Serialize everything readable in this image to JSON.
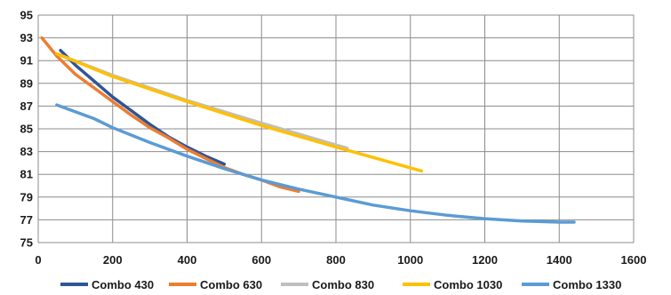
{
  "chart_data": {
    "type": "line",
    "title": "",
    "xlabel": "",
    "ylabel": "",
    "xlim": [
      0,
      1600
    ],
    "ylim": [
      75,
      95
    ],
    "x_ticks": [
      0,
      200,
      400,
      600,
      800,
      1000,
      1200,
      1400,
      1600
    ],
    "y_ticks": [
      75,
      77,
      79,
      81,
      83,
      85,
      87,
      89,
      91,
      93,
      95
    ],
    "grid": true,
    "legend_position": "bottom",
    "series": [
      {
        "name": "Combo 430",
        "color": "#2E5597",
        "points": [
          [
            60,
            91.9
          ],
          [
            100,
            90.6
          ],
          [
            150,
            89.2
          ],
          [
            200,
            87.8
          ],
          [
            250,
            86.6
          ],
          [
            300,
            85.4
          ],
          [
            350,
            84.3
          ],
          [
            400,
            83.4
          ],
          [
            450,
            82.6
          ],
          [
            500,
            81.9
          ]
        ]
      },
      {
        "name": "Combo 630",
        "color": "#ED7D31",
        "points": [
          [
            10,
            93.0
          ],
          [
            50,
            91.4
          ],
          [
            100,
            89.8
          ],
          [
            150,
            88.6
          ],
          [
            200,
            87.4
          ],
          [
            250,
            86.2
          ],
          [
            300,
            85.1
          ],
          [
            350,
            84.2
          ],
          [
            400,
            83.2
          ],
          [
            450,
            82.4
          ],
          [
            500,
            81.6
          ],
          [
            550,
            81.0
          ],
          [
            600,
            80.5
          ],
          [
            650,
            79.9
          ],
          [
            700,
            79.5
          ]
        ]
      },
      {
        "name": "Combo 830",
        "color": "#BFBFBF",
        "points": [
          [
            50,
            91.6
          ],
          [
            200,
            89.7
          ],
          [
            400,
            87.5
          ],
          [
            600,
            85.5
          ],
          [
            830,
            83.3
          ]
        ]
      },
      {
        "name": "Combo 1030",
        "color": "#FFC000",
        "points": [
          [
            50,
            91.6
          ],
          [
            200,
            89.6
          ],
          [
            400,
            87.4
          ],
          [
            600,
            85.3
          ],
          [
            800,
            83.4
          ],
          [
            1030,
            81.3
          ]
        ]
      },
      {
        "name": "Combo 1330",
        "color": "#5B9BD5",
        "points": [
          [
            50,
            87.1
          ],
          [
            150,
            85.9
          ],
          [
            200,
            85.1
          ],
          [
            300,
            83.8
          ],
          [
            400,
            82.6
          ],
          [
            500,
            81.5
          ],
          [
            600,
            80.5
          ],
          [
            700,
            79.7
          ],
          [
            800,
            79.0
          ],
          [
            900,
            78.3
          ],
          [
            1000,
            77.8
          ],
          [
            1100,
            77.4
          ],
          [
            1200,
            77.1
          ],
          [
            1300,
            76.9
          ],
          [
            1400,
            76.8
          ],
          [
            1440,
            76.8
          ]
        ]
      }
    ]
  }
}
